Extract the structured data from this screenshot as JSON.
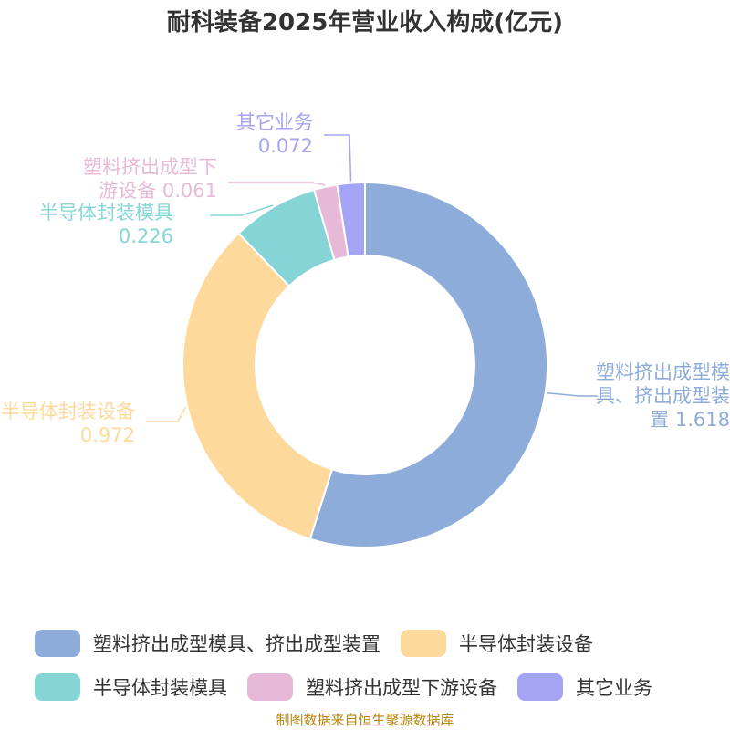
{
  "chart_data": {
    "type": "pie",
    "variant": "donut",
    "title": "耐科装备2025年营业收入构成(亿元)",
    "labels": [
      "塑料挤出成型模具、挤出成型装置",
      "半导体封装设备",
      "半导体封装模具",
      "塑料挤出成型下游设备",
      "其它业务"
    ],
    "values": [
      1.618,
      0.972,
      0.226,
      0.061,
      0.072
    ],
    "colors": [
      "#8eacd9",
      "#fdd99b",
      "#86d5d6",
      "#e7b9d8",
      "#a4a3f4"
    ],
    "legend_position": "bottom"
  },
  "slice_labels": [
    {
      "lines": [
        "塑料挤出成型模",
        "具、挤出成型装",
        "置 1.618"
      ]
    },
    {
      "lines": [
        "半导体封装设备",
        "0.972"
      ]
    },
    {
      "lines": [
        "半导体封装模具",
        "0.226"
      ]
    },
    {
      "lines": [
        "塑料挤出成型下",
        "游设备 0.061"
      ]
    },
    {
      "lines": [
        "其它业务",
        "0.072"
      ]
    }
  ],
  "source": "制图数据来自恒生聚源数据库"
}
